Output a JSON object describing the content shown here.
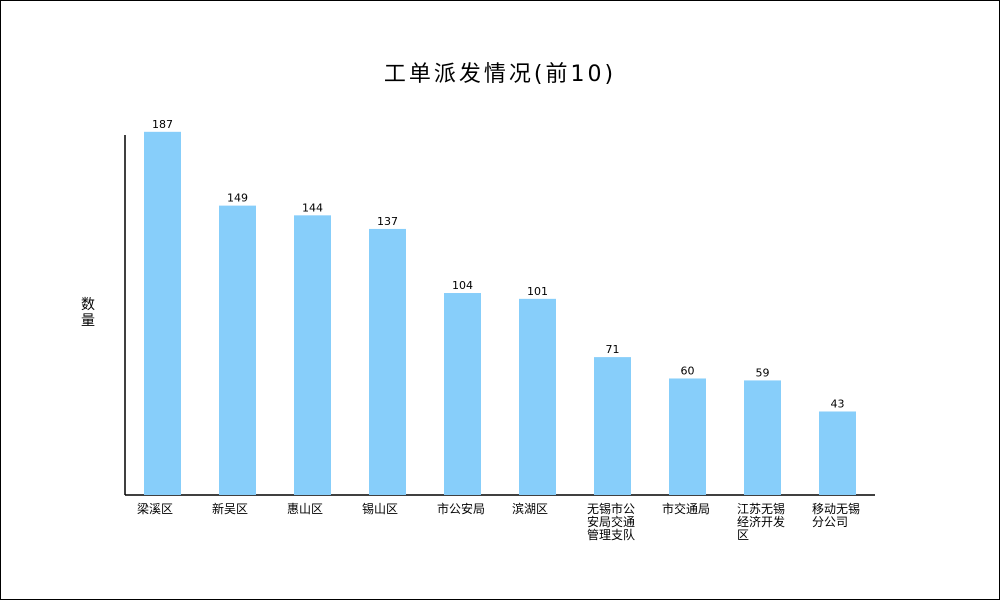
{
  "chart_data": {
    "type": "bar",
    "title": "工单派发情况(前10)",
    "xlabel": "",
    "ylabel": "数量",
    "categories": [
      "梁溪区",
      "新吴区",
      "惠山区",
      "锡山区",
      "市公安局",
      "滨湖区",
      "无锡市公安局交通管理支队",
      "市交通局",
      "江苏无锡经济开发区",
      "移动无锡分公司"
    ],
    "values": [
      187,
      149,
      144,
      137,
      104,
      101,
      71,
      60,
      59,
      43
    ],
    "ylim": [
      0,
      190
    ],
    "grid": false,
    "legend": "none",
    "bar_color": "#87CEFA",
    "axis_color": "#000000"
  }
}
